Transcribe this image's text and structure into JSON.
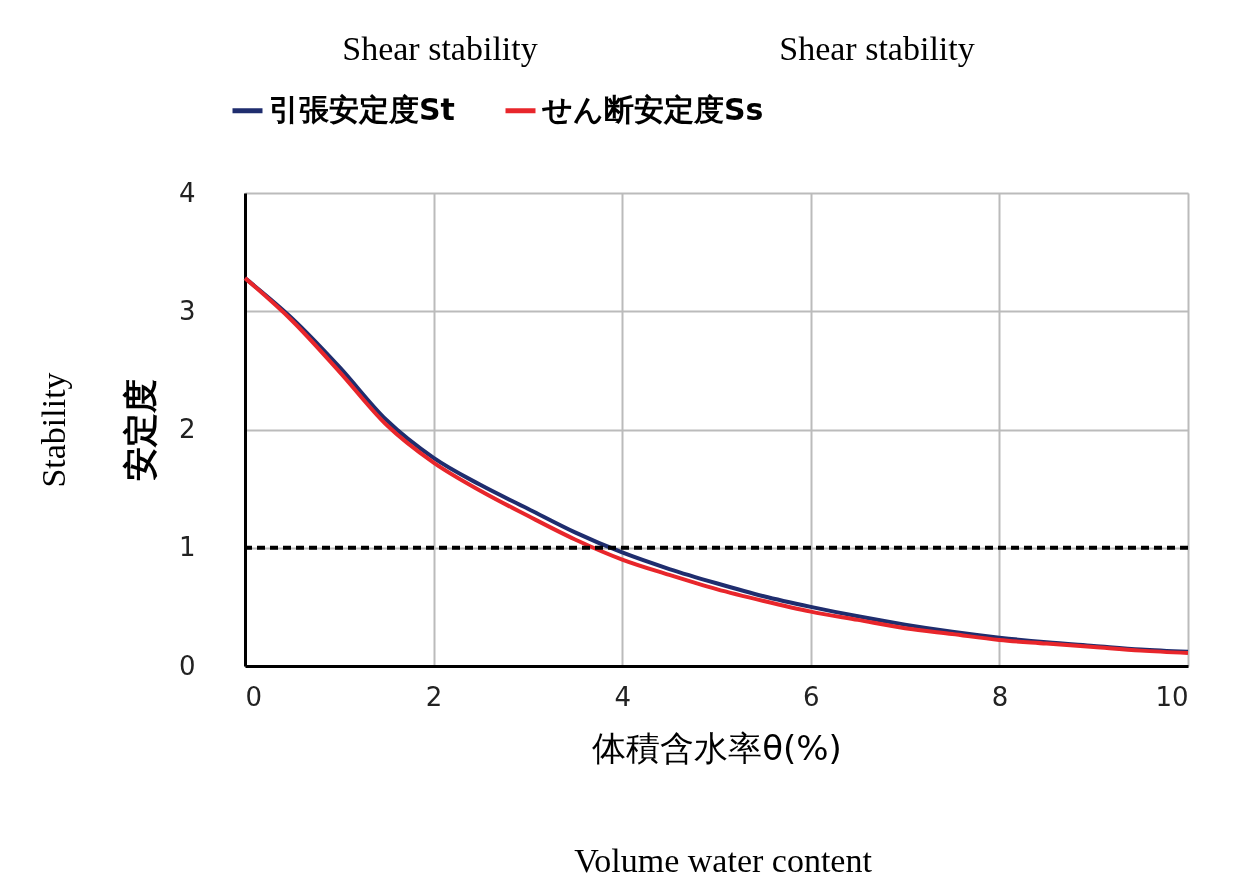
{
  "chart_data": {
    "type": "line",
    "x": [
      0,
      0.5,
      1,
      1.5,
      2,
      2.5,
      3,
      3.5,
      4,
      4.5,
      5,
      5.5,
      6,
      6.5,
      7,
      7.5,
      8,
      8.5,
      9,
      9.5,
      10
    ],
    "series": [
      {
        "name": "引張安定度St",
        "color": "#1f2d6e",
        "values": [
          3.28,
          2.94,
          2.53,
          2.08,
          1.76,
          1.53,
          1.33,
          1.13,
          0.96,
          0.82,
          0.7,
          0.59,
          0.5,
          0.42,
          0.35,
          0.29,
          0.24,
          0.2,
          0.17,
          0.14,
          0.12
        ]
      },
      {
        "name": "せん断安定度Ss",
        "color": "#e8262b",
        "values": [
          3.28,
          2.92,
          2.49,
          2.04,
          1.72,
          1.48,
          1.27,
          1.07,
          0.9,
          0.77,
          0.65,
          0.55,
          0.46,
          0.39,
          0.32,
          0.27,
          0.22,
          0.19,
          0.16,
          0.13,
          0.11
        ]
      }
    ],
    "xlabel": "体積含水率θ(%)",
    "ylabel": "安定度",
    "xlim": [
      0,
      10
    ],
    "xticks": [
      0,
      2,
      4,
      6,
      8,
      10
    ],
    "ylim": [
      0,
      4
    ],
    "yticks": [
      0,
      1,
      2,
      3,
      4
    ],
    "grid": true,
    "legend": "top",
    "line_style": "solid",
    "marker": "none",
    "ref_lines": [
      {
        "axis": "y",
        "value": 1,
        "color": "#000000",
        "line_style": "dashed"
      }
    ],
    "annotations": [
      "Shear stability",
      "Shear stability",
      "Stability",
      "Volume water content"
    ]
  }
}
